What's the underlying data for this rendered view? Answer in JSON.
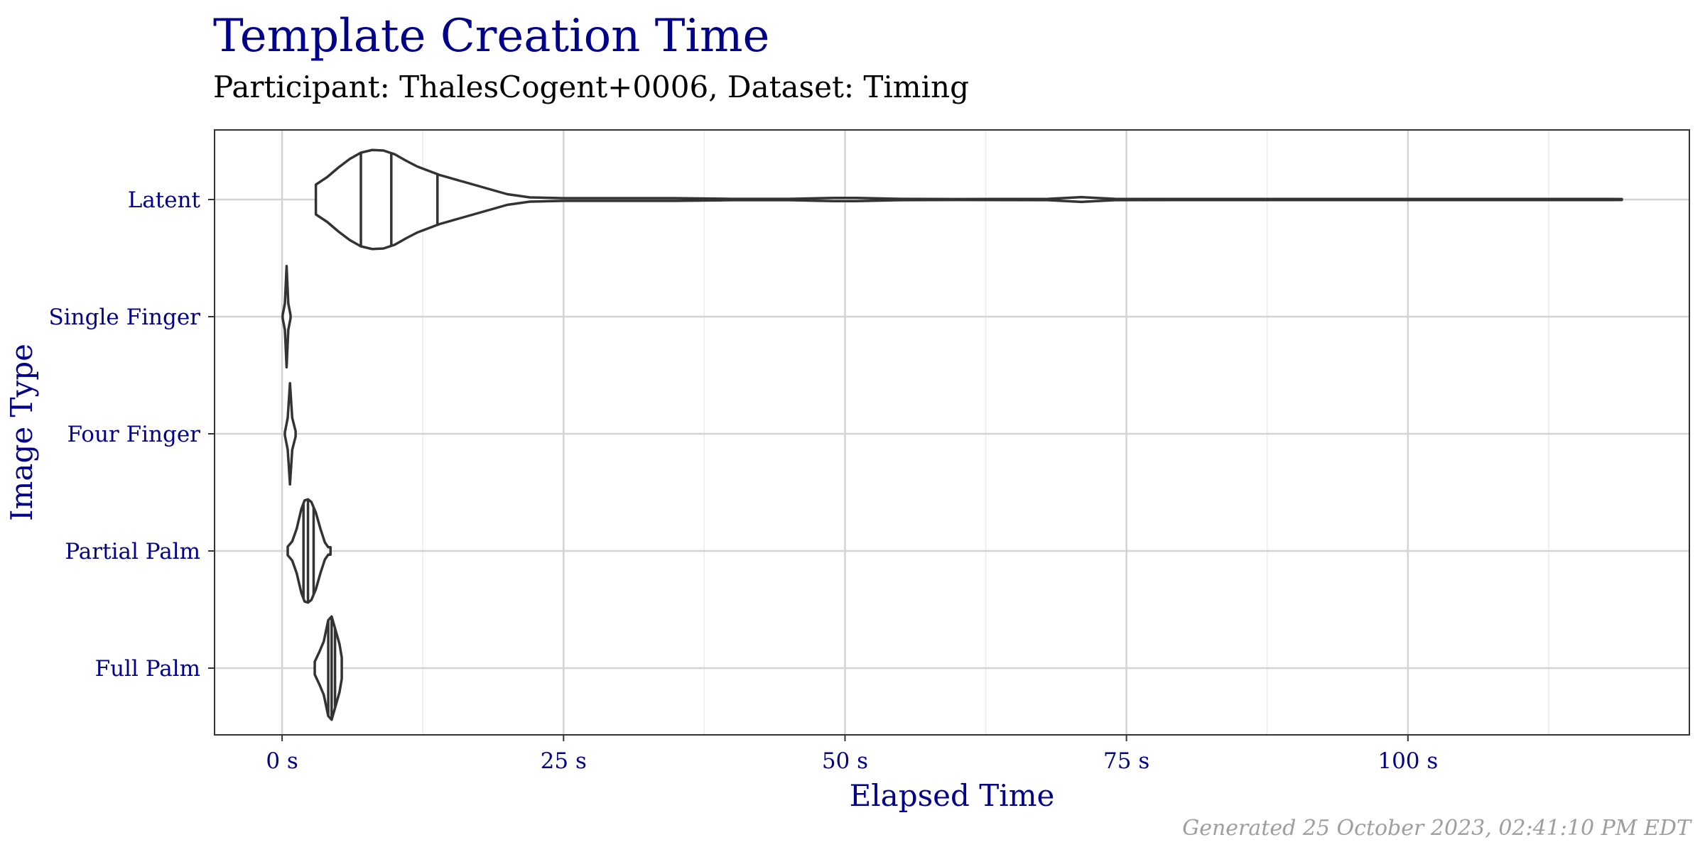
{
  "title": "Template Creation Time",
  "subtitle": "Participant: ThalesCogent+0006, Dataset: Timing",
  "caption": "Generated 25 October 2023, 02:41:10 PM EDT",
  "colors": {
    "title": "#00008b",
    "axis_text": "#00008b",
    "violin": "#333333",
    "grid_major": "#d4d4d4",
    "grid_minor": "#ebebeb",
    "caption": "#9e9e9e"
  },
  "chart_data": {
    "type": "violin",
    "orientation": "horizontal",
    "xlabel": "Elapsed Time",
    "ylabel": "Image Type",
    "xlim": [
      -6,
      125
    ],
    "x_ticks": [
      0,
      25,
      50,
      75,
      100
    ],
    "x_tick_labels": [
      "0 s",
      "25 s",
      "50 s",
      "75 s",
      "100 s"
    ],
    "x_minor_ticks": [
      12.5,
      37.5,
      62.5,
      87.5,
      112.5
    ],
    "categories": [
      "Latent",
      "Single Finger",
      "Four Finger",
      "Partial Palm",
      "Full Palm"
    ],
    "grid": true,
    "draw_quantiles": [
      0.25,
      0.5,
      0.75
    ],
    "series": [
      {
        "category": "Latent",
        "quantiles": [
          7,
          9.7,
          13.8
        ],
        "profile": [
          [
            3,
            0.28
          ],
          [
            4,
            0.42
          ],
          [
            5,
            0.6
          ],
          [
            6,
            0.76
          ],
          [
            7,
            0.88
          ],
          [
            8,
            0.93
          ],
          [
            9,
            0.92
          ],
          [
            10,
            0.85
          ],
          [
            11,
            0.73
          ],
          [
            12,
            0.62
          ],
          [
            13,
            0.54
          ],
          [
            14,
            0.46
          ],
          [
            16,
            0.34
          ],
          [
            18,
            0.22
          ],
          [
            20,
            0.1
          ],
          [
            22,
            0.04
          ],
          [
            25,
            0.025
          ],
          [
            30,
            0.025
          ],
          [
            35,
            0.025
          ],
          [
            40,
            0.012
          ],
          [
            45,
            0.012
          ],
          [
            49,
            0.03
          ],
          [
            51,
            0.03
          ],
          [
            55,
            0.012
          ],
          [
            60,
            0.008
          ],
          [
            68,
            0.012
          ],
          [
            71,
            0.045
          ],
          [
            74,
            0.012
          ],
          [
            80,
            0.01
          ],
          [
            90,
            0.01
          ],
          [
            100,
            0.01
          ],
          [
            110,
            0.01
          ],
          [
            118,
            0.01
          ],
          [
            119,
            0.008
          ]
        ]
      },
      {
        "category": "Single Finger",
        "quantiles": [],
        "profile": [
          [
            0.05,
            0.03
          ],
          [
            0.25,
            0.25
          ],
          [
            0.4,
            0.95
          ],
          [
            0.55,
            0.25
          ],
          [
            0.75,
            0.03
          ]
        ]
      },
      {
        "category": "Four Finger",
        "quantiles": [],
        "profile": [
          [
            0.25,
            0.03
          ],
          [
            0.5,
            0.3
          ],
          [
            0.7,
            0.95
          ],
          [
            0.9,
            0.3
          ],
          [
            1.2,
            0.05
          ]
        ]
      },
      {
        "category": "Partial Palm",
        "quantiles": [
          1.9,
          2.3,
          2.8
        ],
        "profile": [
          [
            0.5,
            0.08
          ],
          [
            0.9,
            0.18
          ],
          [
            1.3,
            0.42
          ],
          [
            1.7,
            0.78
          ],
          [
            2.0,
            0.95
          ],
          [
            2.3,
            0.97
          ],
          [
            2.6,
            0.92
          ],
          [
            3.0,
            0.72
          ],
          [
            3.4,
            0.42
          ],
          [
            3.8,
            0.16
          ],
          [
            4.1,
            0.07
          ],
          [
            4.3,
            0.07
          ]
        ]
      },
      {
        "category": "Full Palm",
        "quantiles": [
          4.1,
          4.4,
          4.7
        ],
        "profile": [
          [
            2.9,
            0.12
          ],
          [
            3.3,
            0.3
          ],
          [
            3.7,
            0.5
          ],
          [
            4.1,
            0.9
          ],
          [
            4.4,
            0.97
          ],
          [
            4.7,
            0.75
          ],
          [
            5.1,
            0.45
          ],
          [
            5.3,
            0.2
          ],
          [
            5.3,
            0.08
          ]
        ]
      }
    ]
  }
}
